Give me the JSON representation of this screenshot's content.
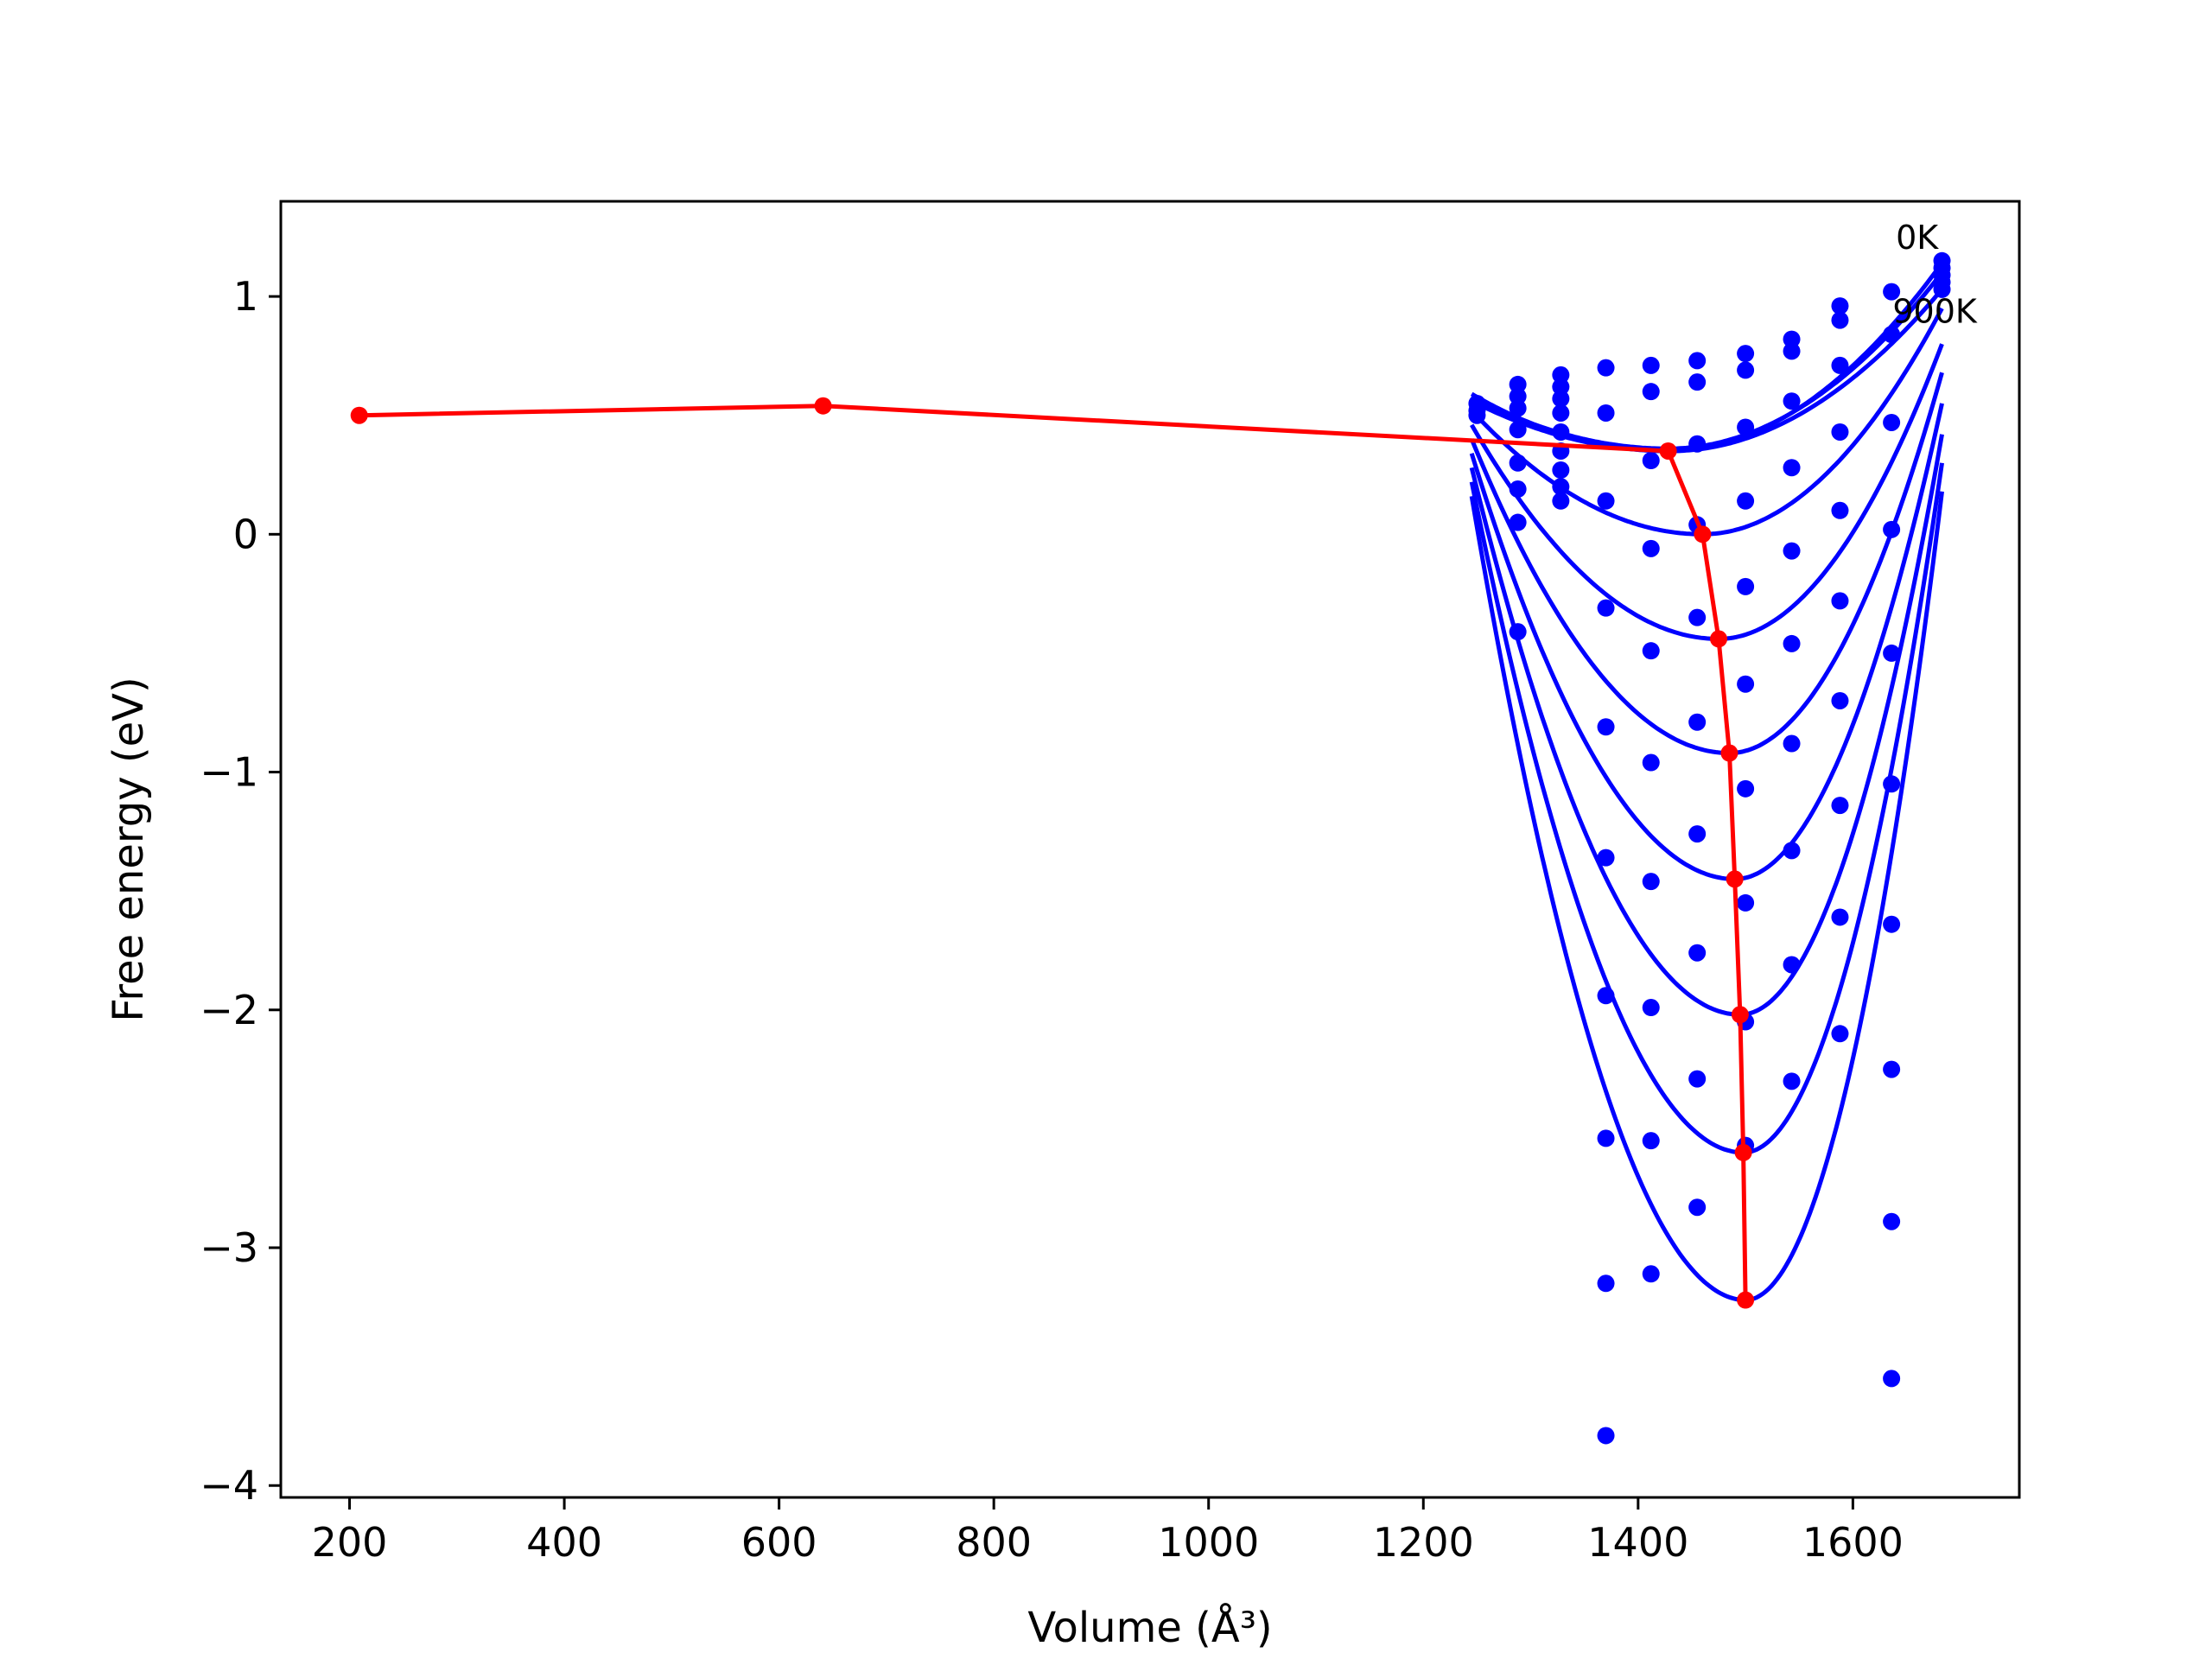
{
  "chart_data": {
    "type": "line",
    "title": "",
    "xlabel": "Volume (Å³)",
    "ylabel": "Free energy (eV)",
    "xlim": [
      136,
      1755
    ],
    "ylim": [
      -4.05,
      1.4
    ],
    "xticks": [
      200,
      400,
      600,
      800,
      1000,
      1200,
      1400,
      1600
    ],
    "xtick_labels": [
      "200",
      "400",
      "600",
      "800",
      "1000",
      "1200",
      "1400",
      "1600"
    ],
    "yticks": [
      -4,
      -3,
      -2,
      -1,
      0,
      1
    ],
    "ytick_labels": [
      "−4",
      "−3",
      "−2",
      "−1",
      "0",
      "1"
    ],
    "grid": false,
    "legend": "none",
    "annotations": [
      {
        "text": "0K",
        "x": 1640,
        "y": 1.2
      },
      {
        "text": "900K",
        "x": 1637,
        "y": 0.89
      }
    ],
    "curve_color": "#0000ff",
    "point_color": "#0000ff",
    "min_line_color": "#ff0000",
    "fit_curves": [
      {
        "minimum": [
          1428,
          0.35
        ],
        "endpoints": [
          [
            1245,
            0.59
          ],
          [
            1683,
            1.14
          ]
        ]
      },
      {
        "minimum": [
          1428,
          0.36
        ],
        "endpoints": [
          [
            1245,
            0.58
          ],
          [
            1683,
            1.1
          ]
        ]
      },
      {
        "minimum": [
          1430,
          0.35
        ],
        "endpoints": [
          [
            1245,
            0.56
          ],
          [
            1683,
            1.03
          ]
        ]
      },
      {
        "minimum": [
          1460,
          0.0
        ],
        "endpoints": [
          [
            1245,
            0.52
          ],
          [
            1683,
            0.95
          ]
        ]
      },
      {
        "minimum": [
          1475,
          -0.44
        ],
        "endpoints": [
          [
            1245,
            0.46
          ],
          [
            1683,
            0.8
          ]
        ]
      },
      {
        "minimum": [
          1485,
          -0.92
        ],
        "endpoints": [
          [
            1245,
            0.4
          ],
          [
            1683,
            0.68
          ]
        ]
      },
      {
        "minimum": [
          1490,
          -1.45
        ],
        "endpoints": [
          [
            1245,
            0.34
          ],
          [
            1683,
            0.55
          ]
        ]
      },
      {
        "minimum": [
          1495,
          -2.02
        ],
        "endpoints": [
          [
            1245,
            0.28
          ],
          [
            1683,
            0.42
          ]
        ]
      },
      {
        "minimum": [
          1498,
          -2.6
        ],
        "endpoints": [
          [
            1245,
            0.22
          ],
          [
            1683,
            0.3
          ]
        ]
      },
      {
        "minimum": [
          1500,
          -3.22
        ],
        "endpoints": [
          [
            1245,
            0.16
          ],
          [
            1683,
            0.18
          ]
        ]
      }
    ],
    "scatter_points": [
      [
        1250,
        0.52
      ],
      [
        1250,
        0.55
      ],
      [
        1250,
        0.5
      ],
      [
        1288,
        0.63
      ],
      [
        1288,
        0.58
      ],
      [
        1288,
        0.53
      ],
      [
        1288,
        0.44
      ],
      [
        1288,
        0.3
      ],
      [
        1288,
        0.19
      ],
      [
        1288,
        0.05
      ],
      [
        1288,
        -0.41
      ],
      [
        1328,
        0.67
      ],
      [
        1328,
        0.62
      ],
      [
        1328,
        0.57
      ],
      [
        1328,
        0.51
      ],
      [
        1328,
        0.43
      ],
      [
        1328,
        0.35
      ],
      [
        1328,
        0.27
      ],
      [
        1328,
        0.2
      ],
      [
        1328,
        0.14
      ],
      [
        1370,
        0.7
      ],
      [
        1370,
        0.51
      ],
      [
        1370,
        0.14
      ],
      [
        1370,
        -0.31
      ],
      [
        1370,
        -0.81
      ],
      [
        1370,
        -1.36
      ],
      [
        1370,
        -1.94
      ],
      [
        1370,
        -2.54
      ],
      [
        1370,
        -3.15
      ],
      [
        1370,
        -3.79
      ],
      [
        1412,
        0.71
      ],
      [
        1412,
        0.6
      ],
      [
        1412,
        0.31
      ],
      [
        1412,
        -0.06
      ],
      [
        1412,
        -0.49
      ],
      [
        1412,
        -0.96
      ],
      [
        1412,
        -1.46
      ],
      [
        1412,
        -1.99
      ],
      [
        1412,
        -2.55
      ],
      [
        1412,
        -3.11
      ],
      [
        1455,
        0.73
      ],
      [
        1455,
        0.64
      ],
      [
        1455,
        0.38
      ],
      [
        1455,
        0.04
      ],
      [
        1455,
        -0.35
      ],
      [
        1455,
        -0.79
      ],
      [
        1455,
        -1.26
      ],
      [
        1455,
        -1.76
      ],
      [
        1455,
        -2.29
      ],
      [
        1455,
        -2.83
      ],
      [
        1500,
        0.76
      ],
      [
        1500,
        0.69
      ],
      [
        1500,
        0.45
      ],
      [
        1500,
        0.14
      ],
      [
        1500,
        -0.22
      ],
      [
        1500,
        -0.63
      ],
      [
        1500,
        -1.07
      ],
      [
        1500,
        -1.55
      ],
      [
        1500,
        -2.05
      ],
      [
        1500,
        -2.57
      ],
      [
        1543,
        0.82
      ],
      [
        1543,
        0.77
      ],
      [
        1543,
        0.56
      ],
      [
        1543,
        0.28
      ],
      [
        1543,
        -0.07
      ],
      [
        1543,
        -0.46
      ],
      [
        1543,
        -0.88
      ],
      [
        1543,
        -1.33
      ],
      [
        1543,
        -1.81
      ],
      [
        1543,
        -2.3
      ],
      [
        1588,
        0.96
      ],
      [
        1588,
        0.9
      ],
      [
        1588,
        0.71
      ],
      [
        1588,
        0.43
      ],
      [
        1588,
        0.1
      ],
      [
        1588,
        -0.28
      ],
      [
        1588,
        -0.7
      ],
      [
        1588,
        -1.14
      ],
      [
        1588,
        -1.61
      ],
      [
        1588,
        -2.1
      ],
      [
        1636,
        1.02
      ],
      [
        1636,
        0.84
      ],
      [
        1636,
        0.47
      ],
      [
        1636,
        0.02
      ],
      [
        1636,
        -0.5
      ],
      [
        1636,
        -1.05
      ],
      [
        1636,
        -1.64
      ],
      [
        1636,
        -2.25
      ],
      [
        1636,
        -2.89
      ],
      [
        1636,
        -3.55
      ],
      [
        1683,
        1.15
      ],
      [
        1683,
        1.12
      ],
      [
        1683,
        1.09
      ],
      [
        1683,
        1.06
      ],
      [
        1683,
        1.03
      ]
    ],
    "min_line": {
      "x": [
        209,
        641,
        1428,
        1460,
        1475,
        1485,
        1490,
        1495,
        1498,
        1500
      ],
      "y": [
        0.5,
        0.54,
        0.35,
        0.0,
        -0.44,
        -0.92,
        -1.45,
        -2.02,
        -2.6,
        -3.22
      ]
    }
  }
}
